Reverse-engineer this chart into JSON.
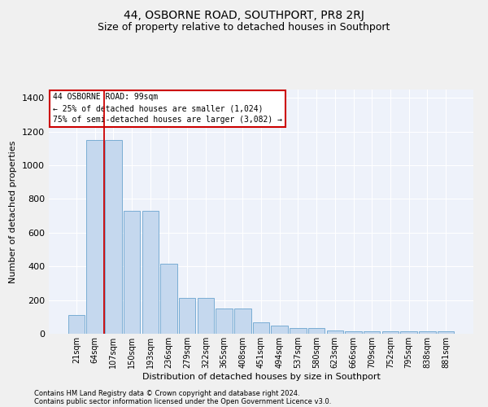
{
  "title": "44, OSBORNE ROAD, SOUTHPORT, PR8 2RJ",
  "subtitle": "Size of property relative to detached houses in Southport",
  "xlabel": "Distribution of detached houses by size in Southport",
  "ylabel": "Number of detached properties",
  "categories": [
    "21sqm",
    "64sqm",
    "107sqm",
    "150sqm",
    "193sqm",
    "236sqm",
    "279sqm",
    "322sqm",
    "365sqm",
    "408sqm",
    "451sqm",
    "494sqm",
    "537sqm",
    "580sqm",
    "623sqm",
    "666sqm",
    "709sqm",
    "752sqm",
    "795sqm",
    "838sqm",
    "881sqm"
  ],
  "values": [
    110,
    1150,
    1150,
    730,
    730,
    415,
    215,
    215,
    150,
    150,
    70,
    50,
    32,
    32,
    18,
    15,
    15,
    13,
    13,
    13,
    13
  ],
  "bar_color": "#c5d8ee",
  "bar_edge_color": "#7aadd4",
  "red_line_x": 1.5,
  "annotation_line1": "44 OSBORNE ROAD: 99sqm",
  "annotation_line2": "← 25% of detached houses are smaller (1,024)",
  "annotation_line3": "75% of semi-detached houses are larger (3,082) →",
  "annotation_box_color": "#ffffff",
  "annotation_border_color": "#cc0000",
  "red_line_color": "#cc0000",
  "ylim": [
    0,
    1450
  ],
  "yticks": [
    0,
    200,
    400,
    600,
    800,
    1000,
    1200,
    1400
  ],
  "footer1": "Contains HM Land Registry data © Crown copyright and database right 2024.",
  "footer2": "Contains public sector information licensed under the Open Government Licence v3.0.",
  "bg_color": "#eef2fa",
  "grid_color": "#ffffff",
  "title_fontsize": 10,
  "subtitle_fontsize": 9,
  "axis_label_fontsize": 8,
  "tick_fontsize": 7
}
